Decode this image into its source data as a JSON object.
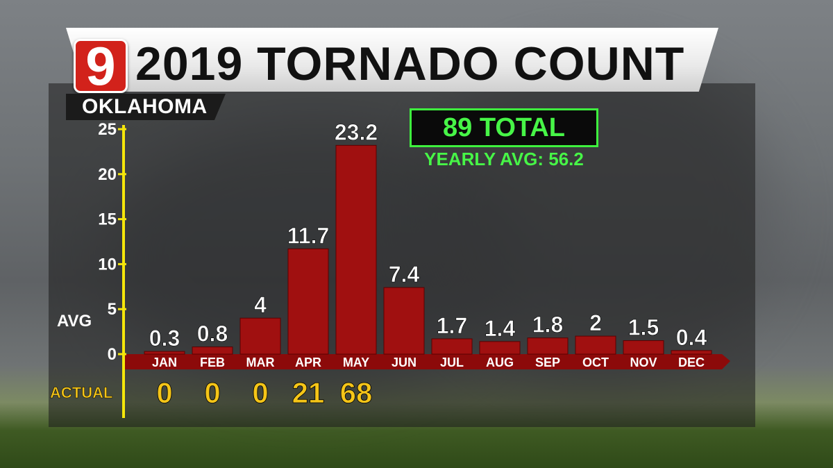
{
  "header": {
    "logo_text": "9",
    "title": "2019 TORNADO COUNT",
    "region": "OKLAHOMA"
  },
  "summary": {
    "total": "89 TOTAL",
    "yearly_avg": "YEARLY AVG: 56.2"
  },
  "colors": {
    "bar": "#a01010",
    "axis": "#f5e60a",
    "accent_green": "#47f547",
    "actual_text": "#f5c518"
  },
  "chart_data": {
    "type": "bar",
    "categories": [
      "JAN",
      "FEB",
      "MAR",
      "APR",
      "MAY",
      "JUN",
      "JUL",
      "AUG",
      "SEP",
      "OCT",
      "NOV",
      "DEC"
    ],
    "series": [
      {
        "values": [
          0.3,
          0.8,
          4,
          11.7,
          23.2,
          7.4,
          1.7,
          1.4,
          1.8,
          2,
          1.5,
          0.4
        ]
      }
    ],
    "value_labels": [
      "0.3",
      "0.8",
      "4",
      "11.7",
      "23.2",
      "7.4",
      "1.7",
      "1.4",
      "1.8",
      "2",
      "1.5",
      "0.4"
    ],
    "ylim": [
      0,
      25
    ],
    "yticks": [
      0,
      5,
      10,
      15,
      20,
      25
    ],
    "ylabel": "AVG",
    "actual_label": "ACTUAL",
    "actual_values": [
      "0",
      "0",
      "0",
      "21",
      "68"
    ],
    "grid": false
  }
}
